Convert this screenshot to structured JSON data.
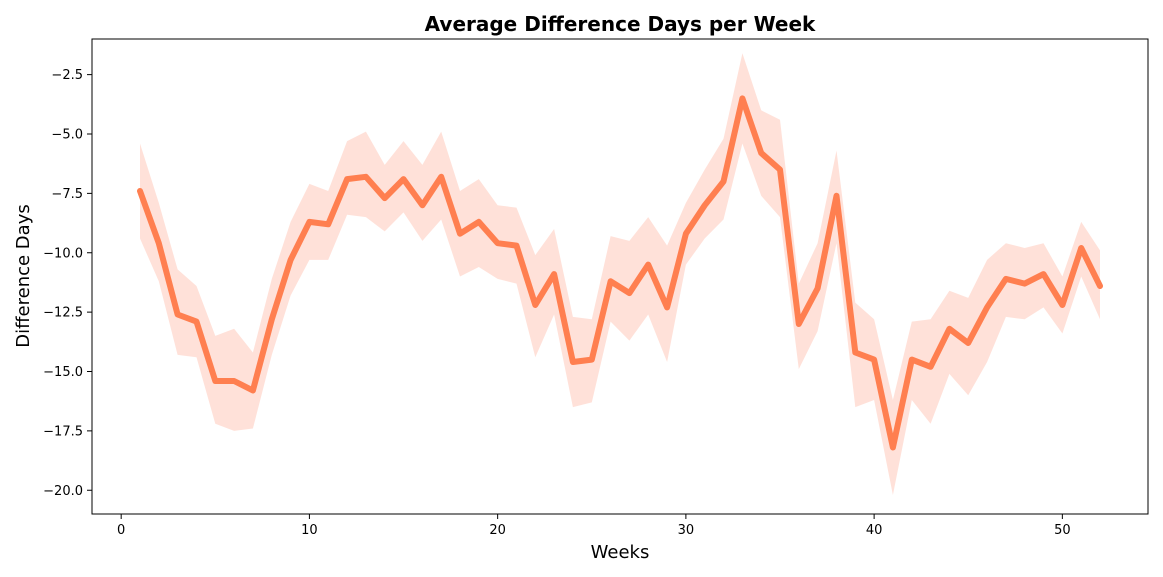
{
  "chart_data": {
    "type": "line",
    "title": "Average Difference Days per Week",
    "xlabel": "Weeks",
    "ylabel": "Difference Days",
    "xlim": [
      -1.55,
      54.55
    ],
    "ylim": [
      -21.0,
      -1.0
    ],
    "x_ticks": [
      0,
      10,
      20,
      30,
      40,
      50
    ],
    "y_ticks": [
      -20.0,
      -17.5,
      -15.0,
      -12.5,
      -10.0,
      -7.5,
      -5.0,
      -2.5
    ],
    "x_tick_labels": [
      "0",
      "10",
      "20",
      "30",
      "40",
      "50"
    ],
    "y_tick_labels": [
      "−20.0",
      "−17.5",
      "−15.0",
      "−12.5",
      "−10.0",
      "−7.5",
      "−5.0",
      "−2.5"
    ],
    "grid": false,
    "legend": "none",
    "line_color": "#ff7f50",
    "band_color": "#ffdcd2",
    "series": [
      {
        "x": [
          1,
          2,
          3,
          4,
          5,
          6,
          7,
          8,
          9,
          10,
          11,
          12,
          13,
          14,
          15,
          16,
          17,
          18,
          19,
          20,
          21,
          22,
          23,
          24,
          25,
          26,
          27,
          28,
          29,
          30,
          31,
          32,
          33,
          34,
          35,
          36,
          37,
          38,
          39,
          40,
          41,
          42,
          43,
          44,
          45,
          46,
          47,
          48,
          49,
          50,
          51,
          52
        ],
        "y": [
          -7.4,
          -9.6,
          -12.6,
          -12.9,
          -15.4,
          -15.4,
          -15.8,
          -12.8,
          -10.3,
          -8.7,
          -8.8,
          -6.9,
          -6.8,
          -7.7,
          -6.9,
          -8.0,
          -6.8,
          -9.2,
          -8.7,
          -9.6,
          -9.7,
          -12.2,
          -10.9,
          -14.6,
          -14.5,
          -11.2,
          -11.7,
          -10.5,
          -12.3,
          -9.2,
          -8.0,
          -7.0,
          -3.5,
          -5.8,
          -6.5,
          -13.0,
          -11.5,
          -7.6,
          -14.2,
          -14.5,
          -18.2,
          -14.5,
          -14.8,
          -13.2,
          -13.8,
          -12.3,
          -11.1,
          -11.3,
          -10.9,
          -12.2,
          -9.8,
          -11.4
        ],
        "ci_upper": [
          -5.4,
          -7.9,
          -10.7,
          -11.4,
          -13.5,
          -13.2,
          -14.2,
          -11.1,
          -8.7,
          -7.1,
          -7.4,
          -5.3,
          -4.9,
          -6.3,
          -5.3,
          -6.3,
          -4.9,
          -7.4,
          -6.9,
          -8.0,
          -8.1,
          -10.1,
          -9.0,
          -12.7,
          -12.8,
          -9.3,
          -9.5,
          -8.5,
          -9.7,
          -7.9,
          -6.5,
          -5.2,
          -1.6,
          -4.0,
          -4.4,
          -11.3,
          -9.6,
          -5.7,
          -12.1,
          -12.8,
          -16.2,
          -12.9,
          -12.8,
          -11.6,
          -11.9,
          -10.3,
          -9.6,
          -9.8,
          -9.6,
          -11.0,
          -8.7,
          -9.9
        ],
        "ci_lower": [
          -9.4,
          -11.2,
          -14.3,
          -14.4,
          -17.2,
          -17.5,
          -17.4,
          -14.3,
          -11.8,
          -10.3,
          -10.3,
          -8.4,
          -8.5,
          -9.1,
          -8.3,
          -9.5,
          -8.6,
          -11.0,
          -10.6,
          -11.1,
          -11.3,
          -14.4,
          -12.6,
          -16.5,
          -16.3,
          -12.9,
          -13.7,
          -12.6,
          -14.6,
          -10.5,
          -9.4,
          -8.6,
          -5.4,
          -7.6,
          -8.5,
          -14.9,
          -13.3,
          -9.6,
          -16.5,
          -16.2,
          -20.2,
          -16.2,
          -17.2,
          -15.1,
          -16.0,
          -14.6,
          -12.7,
          -12.8,
          -12.3,
          -13.4,
          -11.0,
          -12.8
        ]
      }
    ]
  }
}
